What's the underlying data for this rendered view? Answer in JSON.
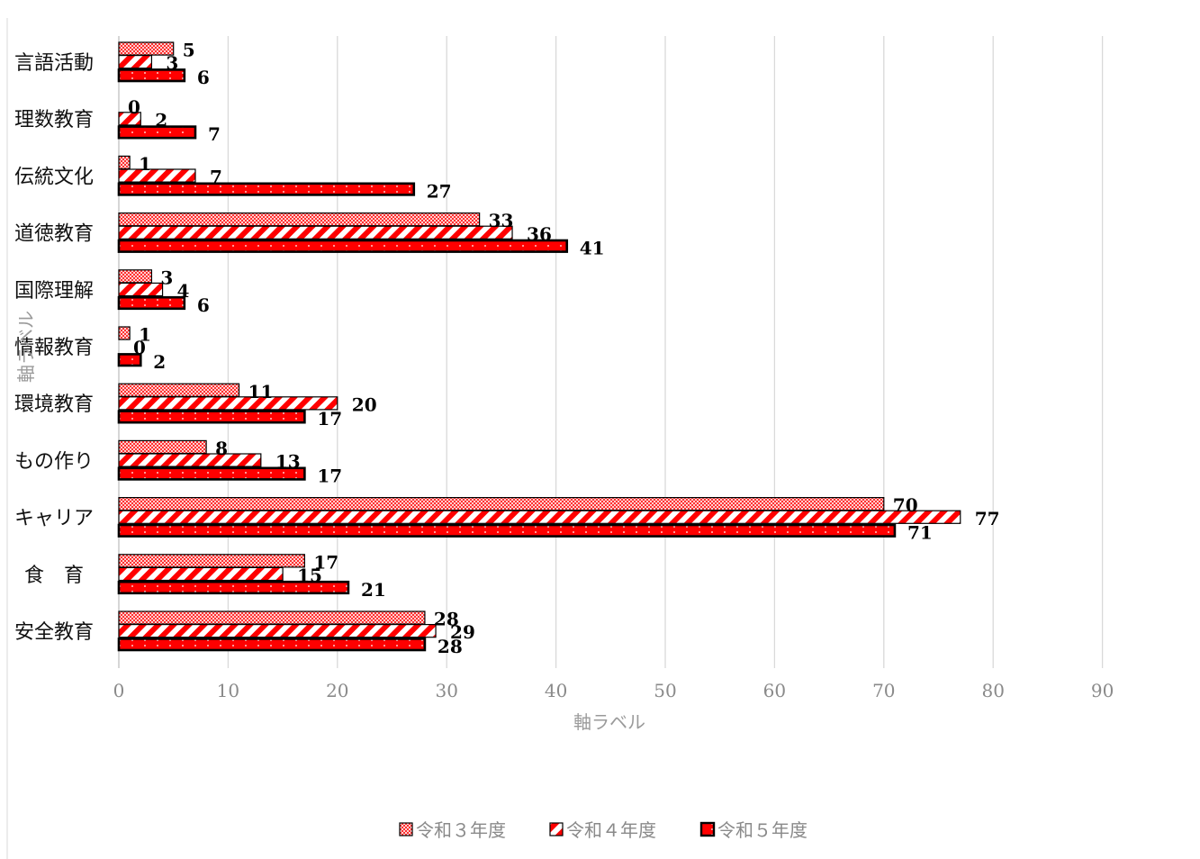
{
  "chart_data": {
    "type": "bar",
    "orientation": "horizontal",
    "categories": [
      "言語活動",
      "理数教育",
      "伝統文化",
      "道徳教育",
      "国際理解",
      "情報教育",
      "環境教育",
      "もの作り",
      "キャリア",
      "食　育",
      "安全教育"
    ],
    "series": [
      {
        "name": "令和３年度",
        "values": [
          5,
          0,
          1,
          33,
          3,
          1,
          11,
          8,
          70,
          17,
          28
        ],
        "color": "#ff0000",
        "pattern": "checker"
      },
      {
        "name": "令和４年度",
        "values": [
          3,
          2,
          7,
          36,
          4,
          0,
          20,
          13,
          77,
          15,
          29
        ],
        "color": "#ff0000",
        "pattern": "diagonal-stripe"
      },
      {
        "name": "令和５年度",
        "values": [
          6,
          7,
          27,
          41,
          6,
          2,
          17,
          17,
          71,
          21,
          28
        ],
        "color": "#ff0000",
        "pattern": "solid-dotted"
      }
    ],
    "xlim": [
      0,
      90
    ],
    "xticks": [
      0,
      10,
      20,
      30,
      40,
      50,
      60,
      70,
      80,
      90
    ],
    "xlabel": "軸ラベル",
    "ylabel": "軸ラベル",
    "grid": "vertical",
    "legend": "bottom"
  }
}
